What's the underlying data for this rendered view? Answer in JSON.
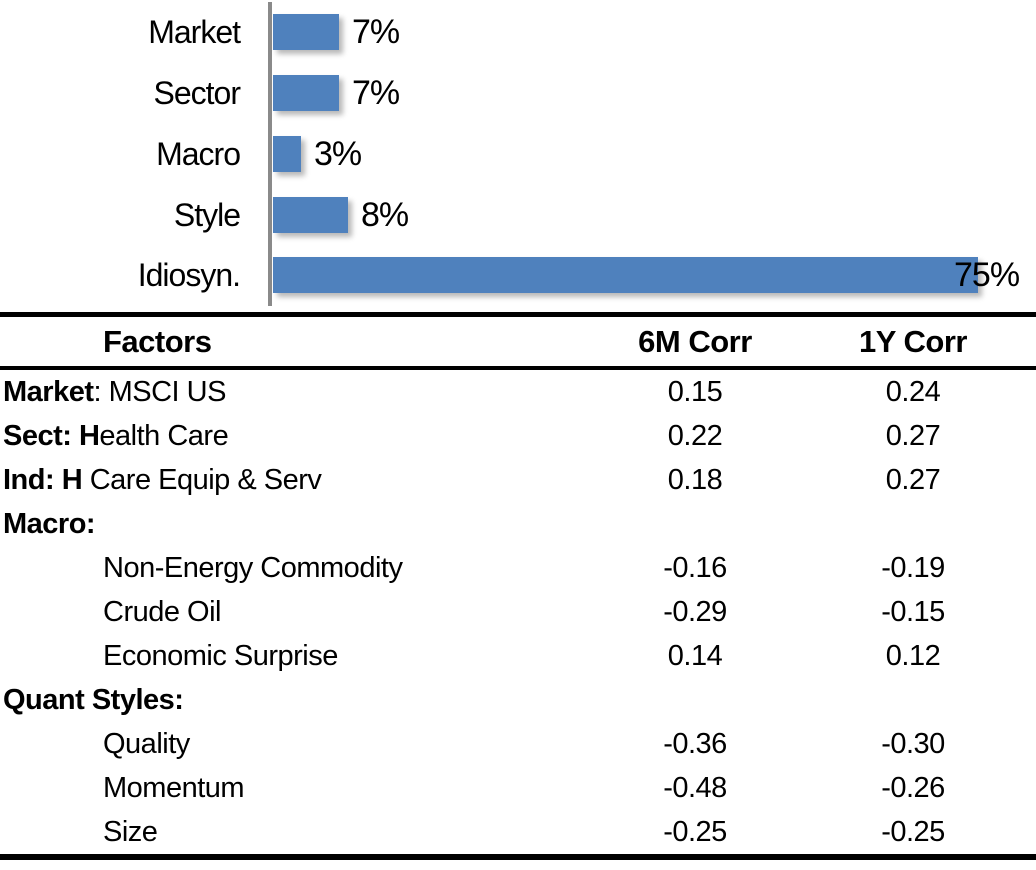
{
  "chart_data": {
    "type": "bar",
    "orientation": "horizontal",
    "title": "",
    "xlabel": "",
    "ylabel": "",
    "categories": [
      "Market",
      "Sector",
      "Macro",
      "Style",
      "Idiosyn."
    ],
    "values": [
      7,
      7,
      3,
      8,
      75
    ],
    "value_labels": [
      "7%",
      "7%",
      "3%",
      "8%",
      "75%"
    ],
    "xlim": [
      0,
      80
    ],
    "grid": "off",
    "legend": "none",
    "bar_color": "#4F81BD",
    "axis_color": "#8A8A8A"
  },
  "table": {
    "columns": [
      "Factors",
      "6M Corr",
      "1Y Corr"
    ],
    "rows": [
      {
        "bold": "Market",
        "rest": ": MSCI US",
        "indent": false,
        "values": [
          "0.15",
          "0.24"
        ]
      },
      {
        "bold": "Sect: H",
        "rest": "ealth Care",
        "indent": false,
        "values": [
          "0.22",
          "0.27"
        ]
      },
      {
        "bold": "Ind: H",
        "rest": " Care Equip & Serv",
        "indent": false,
        "values": [
          "0.18",
          "0.27"
        ]
      },
      {
        "bold": "Macro:",
        "rest": "",
        "indent": false,
        "values": [
          "",
          ""
        ]
      },
      {
        "bold": "",
        "rest": "Non-Energy Commodity",
        "indent": true,
        "values": [
          "-0.16",
          "-0.19"
        ]
      },
      {
        "bold": "",
        "rest": "Crude Oil",
        "indent": true,
        "values": [
          "-0.29",
          "-0.15"
        ]
      },
      {
        "bold": "",
        "rest": "Economic Surprise",
        "indent": true,
        "values": [
          "0.14",
          "0.12"
        ]
      },
      {
        "bold": "Quant Styles:",
        "rest": "",
        "indent": false,
        "values": [
          "",
          ""
        ]
      },
      {
        "bold": "",
        "rest": "Quality",
        "indent": true,
        "values": [
          "-0.36",
          "-0.30"
        ]
      },
      {
        "bold": "",
        "rest": "Momentum",
        "indent": true,
        "values": [
          "-0.48",
          "-0.26"
        ]
      },
      {
        "bold": "",
        "rest": "Size",
        "indent": true,
        "values": [
          "-0.25",
          "-0.25"
        ]
      }
    ]
  }
}
